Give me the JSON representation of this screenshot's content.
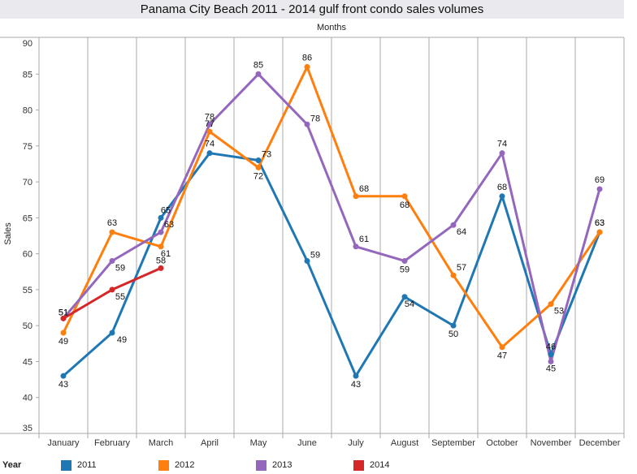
{
  "chart_data": {
    "type": "line",
    "title": "Panama City Beach 2011 - 2014 gulf front condo sales volumes",
    "xlabel": "Months",
    "ylabel": "Sales",
    "ylim": [
      35,
      90
    ],
    "yticks": [
      35,
      40,
      45,
      50,
      55,
      60,
      65,
      70,
      75,
      80,
      85,
      90
    ],
    "grid": "vertical",
    "categories": [
      "January",
      "February",
      "March",
      "April",
      "May",
      "June",
      "July",
      "August",
      "September",
      "October",
      "November",
      "December"
    ],
    "legend": {
      "title": "Year",
      "position": "bottom"
    },
    "series": [
      {
        "name": "2011",
        "color": "#1f77b4",
        "values": [
          43,
          49,
          65,
          74,
          73,
          59,
          43,
          54,
          50,
          68,
          46,
          63
        ]
      },
      {
        "name": "2012",
        "color": "#ff7f0e",
        "values": [
          49,
          63,
          61,
          77,
          72,
          86,
          68,
          68,
          57,
          47,
          53,
          63
        ]
      },
      {
        "name": "2013",
        "color": "#9467bd",
        "values": [
          51,
          59,
          63,
          78,
          85,
          78,
          61,
          59,
          64,
          74,
          45,
          69
        ]
      },
      {
        "name": "2014",
        "color": "#d62728",
        "values": [
          51,
          55,
          58,
          null,
          null,
          null,
          null,
          null,
          null,
          null,
          null,
          null
        ]
      }
    ]
  }
}
